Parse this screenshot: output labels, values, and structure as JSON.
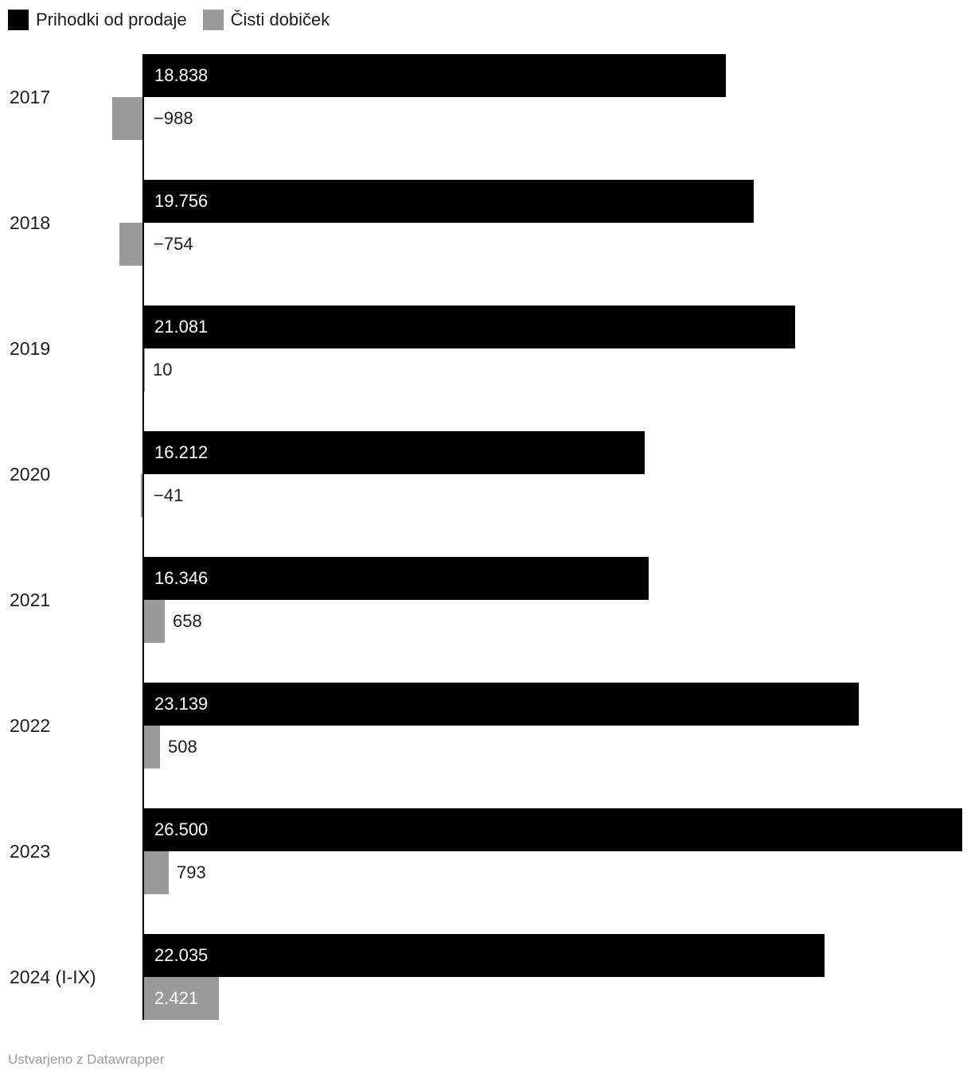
{
  "legend": {
    "items": [
      {
        "label": "Prihodki od prodaje",
        "color": "#000000"
      },
      {
        "label": "Čisti dobiček",
        "color": "#999999"
      }
    ]
  },
  "footer": {
    "text": "Ustvarjeno z Datawrapper"
  },
  "colors": {
    "revenue_bar": "#000000",
    "profit_bar": "#999999",
    "axis_line": "#000000",
    "label_dark": "#1d1d1d",
    "label_light": "#ffffff",
    "footer_text": "#9a9a9a"
  },
  "chart_data": {
    "type": "bar",
    "orientation": "horizontal",
    "grid": false,
    "legend_position": "top-left",
    "value_axis_visible": false,
    "xlim": [
      0,
      26500
    ],
    "categories": [
      "2017",
      "2018",
      "2019",
      "2020",
      "2021",
      "2022",
      "2023",
      "2024 (I-IX)"
    ],
    "series": [
      {
        "name": "Prihodki od prodaje",
        "color": "#000000",
        "values": [
          18838,
          19756,
          21081,
          16212,
          16346,
          23139,
          26500,
          22035
        ],
        "labels": [
          "18.838",
          "19.756",
          "21.081",
          "16.212",
          "16.346",
          "23.139",
          "26.500",
          "22.035"
        ]
      },
      {
        "name": "Čisti dobiček",
        "color": "#999999",
        "values": [
          -988,
          -754,
          10,
          -41,
          658,
          508,
          793,
          2421
        ],
        "labels": [
          "−988",
          "−754",
          "10",
          "−41",
          "658",
          "508",
          "793",
          "2.421"
        ]
      }
    ]
  }
}
